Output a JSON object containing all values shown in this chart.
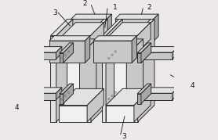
{
  "background_color": "#ede9e9",
  "line_color": "#2a2a2a",
  "fc_light": "#e2e2e2",
  "fc_mid": "#c8c8c8",
  "fc_dark": "#a8a8a8",
  "fc_white": "#f0f0f0",
  "dash_color": "#999999",
  "label_color": "#111111",
  "lw": 0.7,
  "fs": 6.5,
  "proj": {
    "ox": 0.08,
    "oy": 0.1,
    "sx": 0.072,
    "sy_cos": 0.032,
    "sy_sin": 0.032,
    "sz": 0.085
  }
}
